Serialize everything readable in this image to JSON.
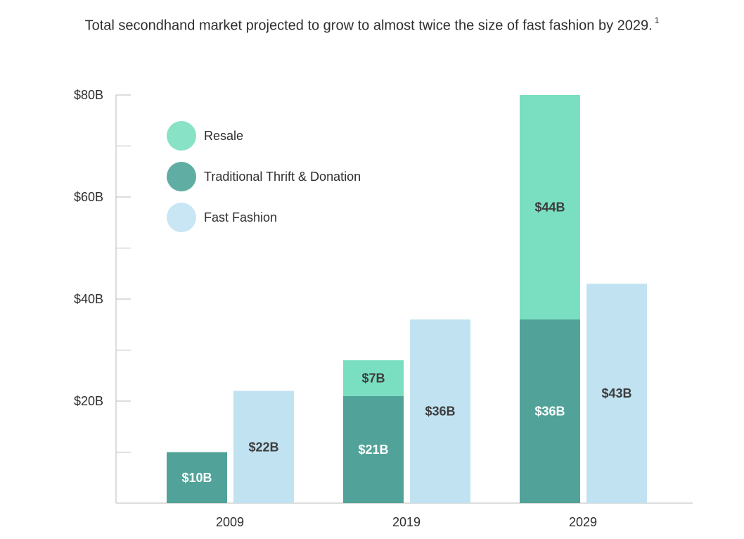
{
  "title": "Total secondhand market projected to grow to almost twice the size of fast fashion by 2029.",
  "title_footnote": "1",
  "colors": {
    "resale": "#7adfc0",
    "thrift": "#51a399",
    "fast_fashion": "#c1e2f1",
    "legend_resale": "#88e2c6",
    "legend_thrift": "#60ada3",
    "legend_fast_fashion": "#c9e6f4",
    "axis": "#bbbbbb",
    "label_dark": "#3d3d3d",
    "label_light": "#ffffff"
  },
  "legend": [
    {
      "label": "Resale"
    },
    {
      "label": "Traditional Thrift & Donation"
    },
    {
      "label": "Fast Fashion"
    }
  ],
  "chart_data": {
    "type": "bar",
    "stacked": true,
    "title": "Total secondhand market projected to grow to almost twice the size of fast fashion by 2029.",
    "xlabel": "",
    "ylabel": "",
    "categories": [
      "2009",
      "2019",
      "2029"
    ],
    "ylim": [
      0,
      80
    ],
    "y_ticks": [
      20,
      40,
      60,
      80
    ],
    "y_tick_labels": [
      "$20B",
      "$40B",
      "$60B",
      "$80B"
    ],
    "grid": false,
    "legend_position": "top-left",
    "series": [
      {
        "name": "Traditional Thrift & Donation",
        "stack": "secondhand",
        "values": [
          10,
          21,
          36
        ],
        "labels": [
          "$10B",
          "$21B",
          "$36B"
        ]
      },
      {
        "name": "Resale",
        "stack": "secondhand",
        "values": [
          0,
          7,
          44
        ],
        "labels": [
          "",
          "$7B",
          "$44B"
        ]
      },
      {
        "name": "Fast Fashion",
        "stack": "fast_fashion",
        "values": [
          22,
          36,
          43
        ],
        "labels": [
          "$22B",
          "$36B",
          "$43B"
        ]
      }
    ]
  }
}
